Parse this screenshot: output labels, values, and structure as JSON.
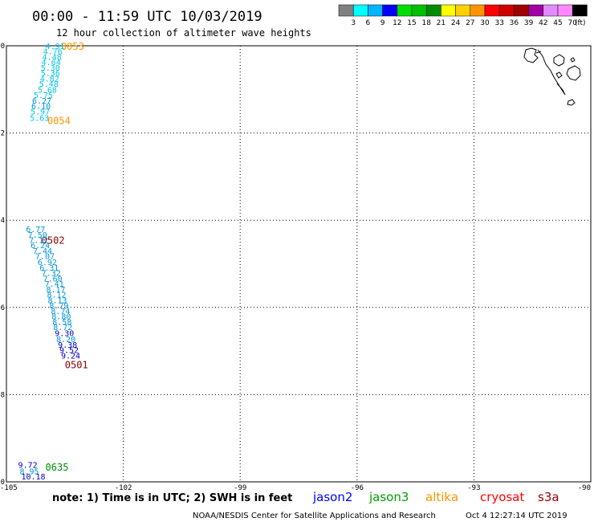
{
  "header": {
    "title": "00:00 - 11:59 UTC 10/03/2019",
    "subtitle": "12 hour collection of altimeter wave heights"
  },
  "legend": {
    "bins": [
      {
        "label": "3",
        "color": "#808080"
      },
      {
        "label": "6",
        "color": "#00ffff"
      },
      {
        "label": "9",
        "color": "#00b4ff"
      },
      {
        "label": "12",
        "color": "#0000ff"
      },
      {
        "label": "15",
        "color": "#00e000"
      },
      {
        "label": "18",
        "color": "#00c000"
      },
      {
        "label": "21",
        "color": "#008c00"
      },
      {
        "label": "24",
        "color": "#ffff00"
      },
      {
        "label": "27",
        "color": "#ffd000"
      },
      {
        "label": "30",
        "color": "#ff9400"
      },
      {
        "label": "33",
        "color": "#ff0000"
      },
      {
        "label": "36",
        "color": "#d00000"
      },
      {
        "label": "39",
        "color": "#a00000"
      },
      {
        "label": "42",
        "color": "#a000a0"
      },
      {
        "label": "45",
        "color": "#e08cff"
      },
      {
        "label": "70",
        "color": "#ff88ff"
      },
      {
        "label": "",
        "color": "#000000"
      }
    ],
    "unit": "(ft)"
  },
  "axes": {
    "lon_ticks": [
      "-105",
      "-102",
      "-99",
      "-96",
      "-93",
      "-90"
    ],
    "lat_ticks": [
      "0",
      "-2",
      "-4",
      "-6",
      "-8",
      "-10"
    ],
    "lon_range": [
      -105,
      -90
    ],
    "lat_range": [
      -10,
      0
    ]
  },
  "time_labels": [
    {
      "text": "0053",
      "color": "#ff9400",
      "lon": -103.6,
      "lat": 0.0
    },
    {
      "text": "0054",
      "color": "#ff9400",
      "lon": -103.95,
      "lat": -1.7
    },
    {
      "text": "0502",
      "color": "#8b0000",
      "lon": -104.1,
      "lat": -4.45
    },
    {
      "text": "0501",
      "color": "#8b0000",
      "lon": -103.5,
      "lat": -7.3
    },
    {
      "text": "0635",
      "color": "#008c00",
      "lon": -104.0,
      "lat": -9.65
    }
  ],
  "wave_tracks": [
    {
      "satellite": "altika",
      "points": [
        {
          "lon": -104.0,
          "lat": 0.0,
          "v": "4.91"
        },
        {
          "lon": -104.06,
          "lat": -0.12,
          "v": "4.76"
        },
        {
          "lon": -104.08,
          "lat": -0.25,
          "v": "4.48"
        },
        {
          "lon": -104.1,
          "lat": -0.37,
          "v": "4.64"
        },
        {
          "lon": -104.12,
          "lat": -0.5,
          "v": "5.30"
        },
        {
          "lon": -104.12,
          "lat": -0.62,
          "v": "5.36"
        },
        {
          "lon": -104.14,
          "lat": -0.75,
          "v": "4.82"
        },
        {
          "lon": -104.16,
          "lat": -0.87,
          "v": "5.48"
        },
        {
          "lon": -104.2,
          "lat": -1.0,
          "v": "5.68"
        },
        {
          "lon": -104.3,
          "lat": -1.12,
          "v": "5.75"
        },
        {
          "lon": -104.34,
          "lat": -1.25,
          "v": "6.27"
        },
        {
          "lon": -104.36,
          "lat": -1.37,
          "v": "6.10"
        },
        {
          "lon": -104.38,
          "lat": -1.5,
          "v": "5.97"
        },
        {
          "lon": -104.4,
          "lat": -1.65,
          "v": "5.63"
        }
      ]
    },
    {
      "satellite": "cryosat",
      "points": [
        {
          "lon": -104.5,
          "lat": -4.2,
          "v": "6.77"
        },
        {
          "lon": -104.45,
          "lat": -4.33,
          "v": "7.50"
        },
        {
          "lon": -104.42,
          "lat": -4.45,
          "v": "7.12"
        },
        {
          "lon": -104.38,
          "lat": -4.57,
          "v": "6.24"
        },
        {
          "lon": -104.32,
          "lat": -4.7,
          "v": "7.44"
        },
        {
          "lon": -104.26,
          "lat": -4.82,
          "v": "7.07"
        },
        {
          "lon": -104.2,
          "lat": -4.95,
          "v": "6.92"
        },
        {
          "lon": -104.15,
          "lat": -5.08,
          "v": "6.31"
        },
        {
          "lon": -104.1,
          "lat": -5.2,
          "v": "7.32"
        },
        {
          "lon": -104.06,
          "lat": -5.33,
          "v": "7.60"
        },
        {
          "lon": -104.02,
          "lat": -5.45,
          "v": "7.41"
        },
        {
          "lon": -103.98,
          "lat": -5.58,
          "v": "8.17"
        },
        {
          "lon": -103.96,
          "lat": -5.7,
          "v": "8.12"
        },
        {
          "lon": -103.94,
          "lat": -5.83,
          "v": "8.13"
        },
        {
          "lon": -103.9,
          "lat": -5.95,
          "v": "8.79"
        },
        {
          "lon": -103.86,
          "lat": -6.08,
          "v": "8.74"
        },
        {
          "lon": -103.84,
          "lat": -6.2,
          "v": "8.80"
        },
        {
          "lon": -103.82,
          "lat": -6.33,
          "v": "8.58"
        },
        {
          "lon": -103.8,
          "lat": -6.45,
          "v": "8.72"
        },
        {
          "lon": -103.76,
          "lat": -6.58,
          "v": "9.30"
        },
        {
          "lon": -103.72,
          "lat": -6.72,
          "v": "8.20"
        },
        {
          "lon": -103.68,
          "lat": -6.85,
          "v": "9.38"
        },
        {
          "lon": -103.64,
          "lat": -6.97,
          "v": "9.52"
        },
        {
          "lon": -103.6,
          "lat": -7.1,
          "v": "9.24"
        }
      ]
    },
    {
      "satellite": "jason3",
      "points": [
        {
          "lon": -104.7,
          "lat": -9.6,
          "v": "9.72"
        },
        {
          "lon": -104.66,
          "lat": -9.75,
          "v": "8.95"
        },
        {
          "lon": -104.62,
          "lat": -9.87,
          "v": "10.18"
        }
      ]
    }
  ],
  "footer": {
    "note": "note: 1) Time is in UTC; 2) SWH is in feet",
    "satellites": [
      {
        "name": "jason2",
        "color": "#0000ff"
      },
      {
        "name": "jason3",
        "color": "#009c00"
      },
      {
        "name": "altika",
        "color": "#ff9400"
      },
      {
        "name": "cryosat",
        "color": "#ff0000"
      },
      {
        "name": "s3a",
        "color": "#a00000"
      }
    ],
    "credit": "NOAA/NESDIS Center for Satellite Applications and Research",
    "timestamp": "Oct  4 12:27:14 UTC 2019"
  }
}
